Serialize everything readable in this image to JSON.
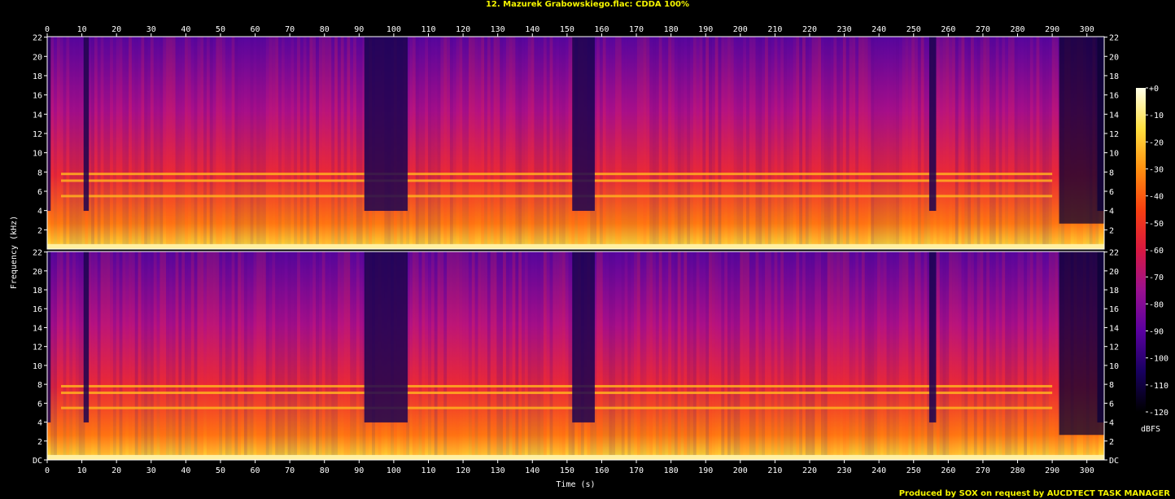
{
  "title": "12. Mazurek Grabowskiego.flac: CDDA 100%",
  "credit": "Produced by SOX on request by AUCDTECT TASK MANAGER",
  "chart_data": {
    "type": "heatmap",
    "title": "12. Mazurek Grabowskiego.flac: CDDA 100%",
    "xlabel": "Time (s)",
    "ylabel": "Frequency (kHz)",
    "xlim": [
      0,
      305
    ],
    "ylim": [
      0,
      22.05
    ],
    "channels": 2,
    "x_ticks": [
      "0",
      "10",
      "20",
      "30",
      "40",
      "50",
      "60",
      "70",
      "80",
      "90",
      "100",
      "110",
      "120",
      "130",
      "140",
      "150",
      "160",
      "170",
      "180",
      "190",
      "200",
      "210",
      "220",
      "230",
      "240",
      "250",
      "260",
      "270",
      "280",
      "290",
      "300"
    ],
    "y_ticks": [
      "DC",
      "2",
      "4",
      "6",
      "8",
      "10",
      "12",
      "14",
      "16",
      "18",
      "20",
      "22"
    ],
    "colorbar": {
      "label": "dBFS",
      "ticks": [
        "+0",
        "-10",
        "-20",
        "-30",
        "-40",
        "-50",
        "-60",
        "-70",
        "-80",
        "-90",
        "-100",
        "-110",
        "-120"
      ],
      "range": [
        -120,
        0
      ],
      "colors": [
        "#000000",
        "#180060",
        "#5a00a0",
        "#9a1090",
        "#d81840",
        "#f84010",
        "#ff9010",
        "#ffe040",
        "#ffffe8"
      ]
    },
    "quiet_segments_s": [
      [
        0,
        1
      ],
      [
        10.5,
        12
      ],
      [
        91.5,
        104
      ],
      [
        151.5,
        158
      ],
      [
        254.5,
        256.5
      ],
      [
        303,
        305
      ]
    ],
    "tonal_lines_khz": [
      5.5,
      7.1,
      7.8
    ]
  }
}
